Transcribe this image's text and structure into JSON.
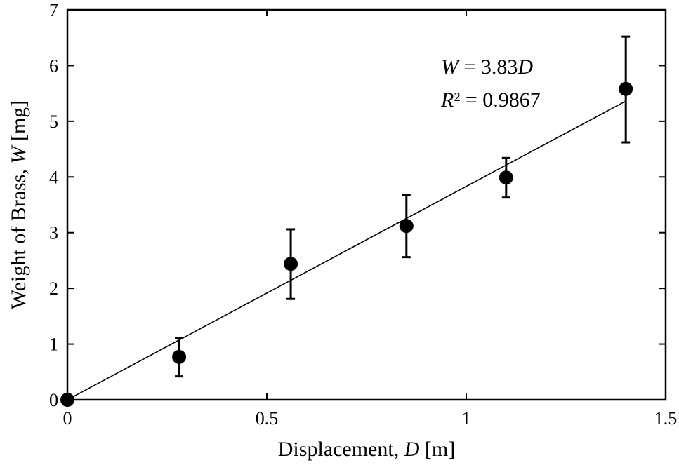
{
  "chart_data": {
    "type": "scatter",
    "xlabel": {
      "text": "Displacement, ",
      "var": "D",
      "unit": " [m]"
    },
    "ylabel": {
      "text": "Weight of Brass, ",
      "var": "W",
      "unit": " [mg]"
    },
    "xlim": [
      0,
      1.5
    ],
    "ylim": [
      0,
      7
    ],
    "xticks": [
      0,
      0.5,
      1,
      1.5
    ],
    "xtick_labels": [
      "0",
      "0.5",
      "1",
      "1.5"
    ],
    "yticks": [
      0,
      1,
      2,
      3,
      4,
      5,
      6,
      7
    ],
    "ytick_labels": [
      "0",
      "1",
      "2",
      "3",
      "4",
      "5",
      "6",
      "7"
    ],
    "grid": false,
    "points": [
      {
        "x": 0.0,
        "y": 0.0,
        "err_low": 0.0,
        "err_high": 0.0
      },
      {
        "x": 0.28,
        "y": 0.77,
        "err_low": 0.42,
        "err_high": 1.11
      },
      {
        "x": 0.56,
        "y": 2.44,
        "err_low": 1.81,
        "err_high": 3.06
      },
      {
        "x": 0.85,
        "y": 3.12,
        "err_low": 2.56,
        "err_high": 3.68
      },
      {
        "x": 1.1,
        "y": 3.99,
        "err_low": 3.63,
        "err_high": 4.34
      },
      {
        "x": 1.4,
        "y": 5.58,
        "err_low": 4.62,
        "err_high": 6.52
      }
    ],
    "fit": {
      "slope": 3.83,
      "x_range": [
        0,
        1.4
      ]
    },
    "annotations": {
      "eq_var": "W",
      "eq_rest": " = 3.83",
      "eq_var2": "D",
      "r2_var": "R",
      "r2_rest": "² = 0.9867"
    }
  }
}
